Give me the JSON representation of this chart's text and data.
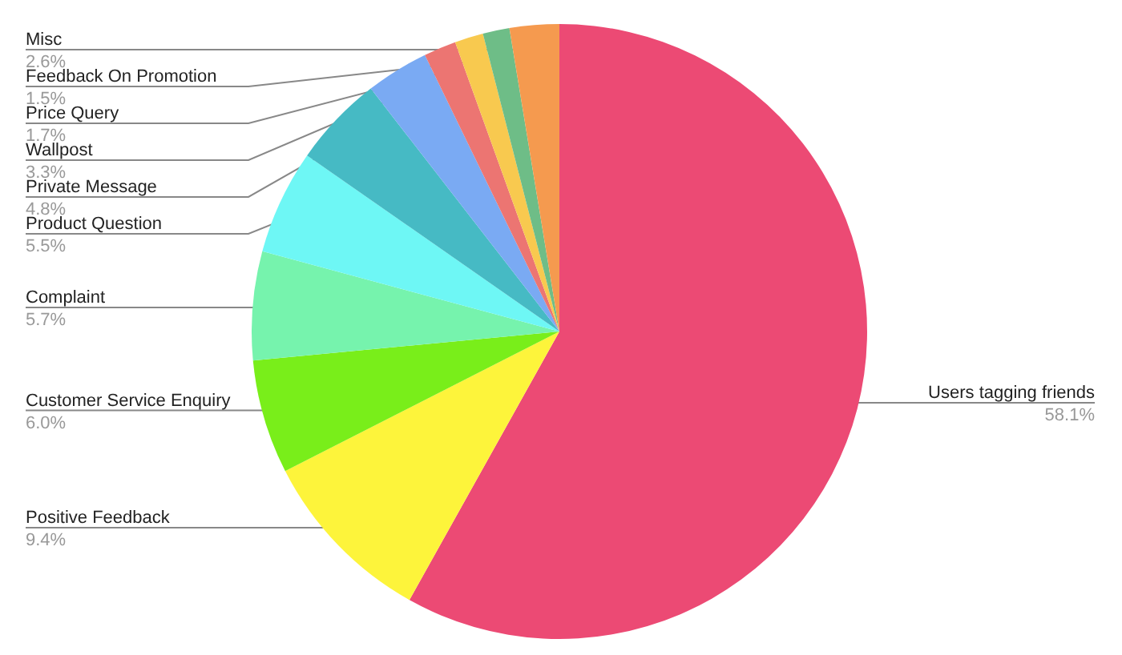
{
  "chart_data": {
    "type": "pie",
    "categories": [
      "Users tagging friends",
      "Positive Feedback",
      "Customer Service Enquiry",
      "Complaint",
      "Product Question",
      "Private Message",
      "Wallpost",
      "Price Query",
      "Feedback On Promotion",
      null,
      "Misc"
    ],
    "values": [
      58.1,
      9.4,
      6.0,
      5.7,
      5.5,
      4.8,
      3.3,
      1.7,
      1.5,
      1.4,
      2.6
    ],
    "colors": [
      "#ec4a74",
      "#fdf43b",
      "#79ee1a",
      "#76f3ad",
      "#6ef7f5",
      "#46bac4",
      "#7aaaf3",
      "#ec7572",
      "#f8c94f",
      "#6ebd87",
      "#f59a4f"
    ],
    "value_labels": [
      "58.1%",
      "9.4%",
      "6.0%",
      "5.7%",
      "5.5%",
      "4.8%",
      "3.3%",
      "1.7%",
      "1.5%",
      null,
      "2.6%"
    ]
  }
}
